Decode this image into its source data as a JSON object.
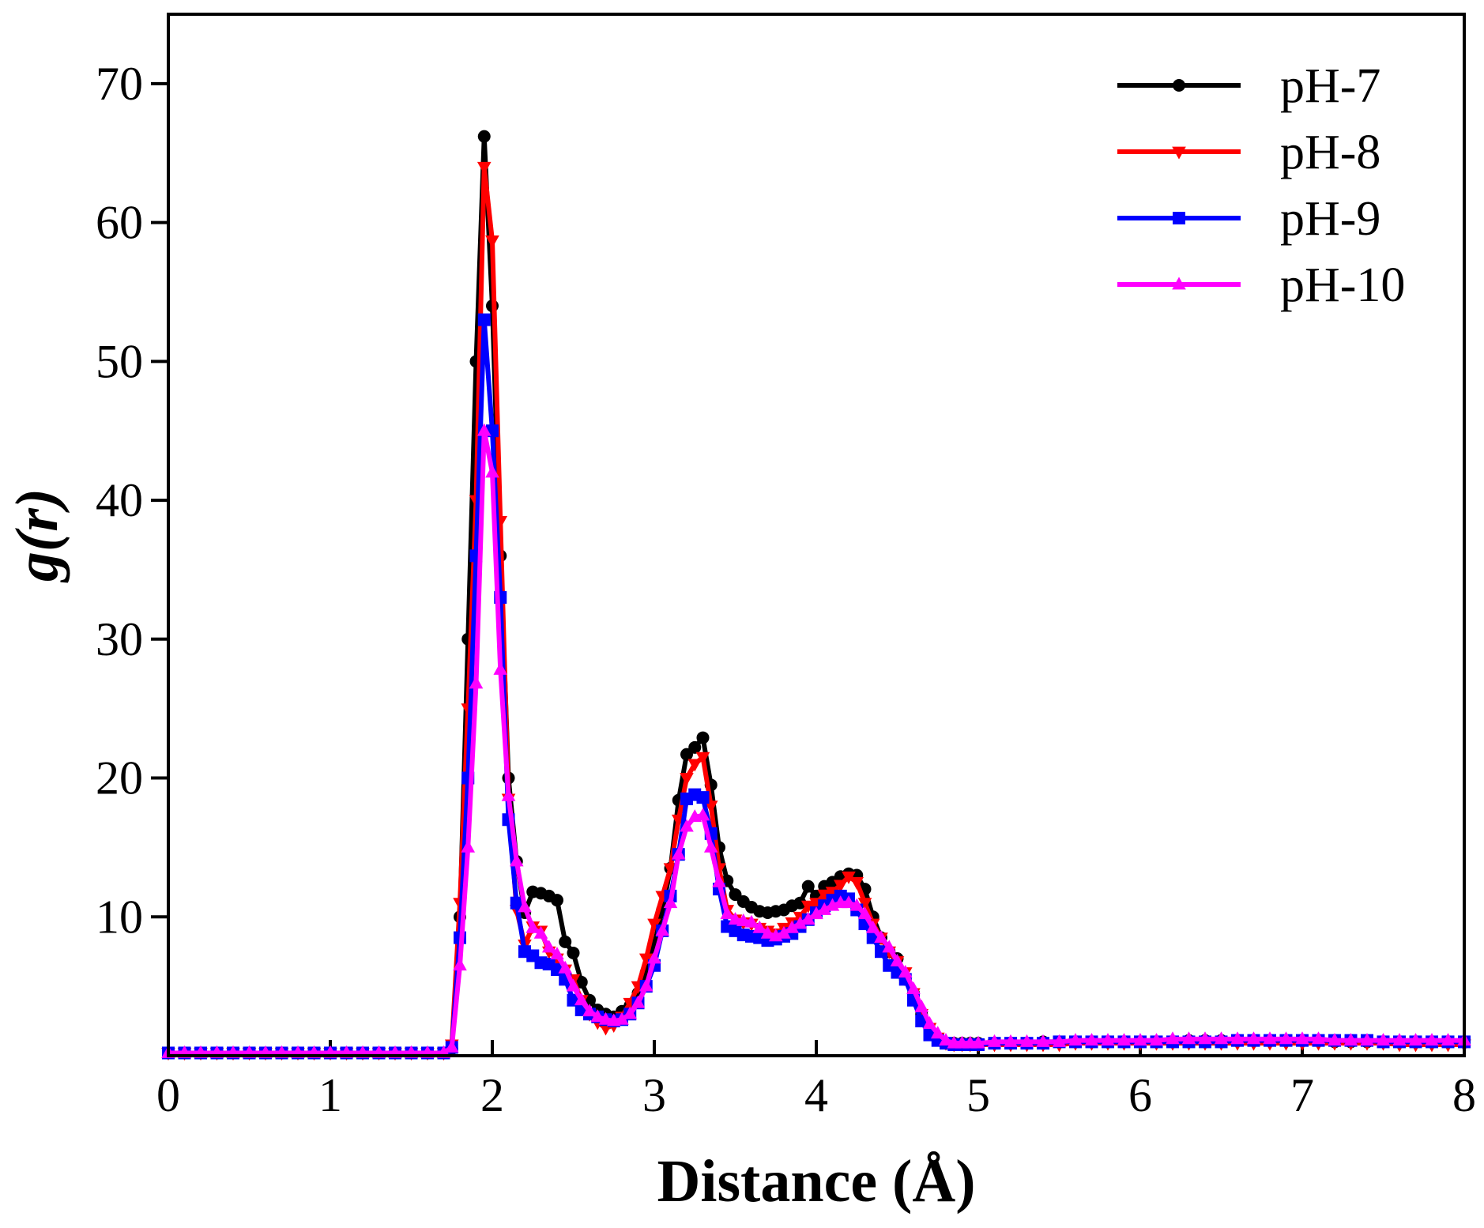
{
  "chart_data": {
    "type": "line",
    "xlabel": "Distance (Å)",
    "ylabel": "g(r)",
    "x": [
      0,
      0.1,
      0.2,
      0.3,
      0.4,
      0.5,
      0.6,
      0.7,
      0.8,
      0.9,
      1,
      1.1,
      1.2,
      1.3,
      1.4,
      1.5,
      1.6,
      1.7,
      1.75,
      1.8,
      1.85,
      1.9,
      1.95,
      2,
      2.05,
      2.1,
      2.15,
      2.2,
      2.25,
      2.3,
      2.35,
      2.4,
      2.45,
      2.5,
      2.55,
      2.6,
      2.65,
      2.7,
      2.75,
      2.8,
      2.85,
      2.9,
      2.95,
      3,
      3.05,
      3.1,
      3.15,
      3.2,
      3.25,
      3.3,
      3.35,
      3.4,
      3.45,
      3.5,
      3.55,
      3.6,
      3.65,
      3.7,
      3.75,
      3.8,
      3.85,
      3.9,
      3.95,
      4,
      4.05,
      4.1,
      4.15,
      4.2,
      4.25,
      4.3,
      4.35,
      4.4,
      4.45,
      4.5,
      4.55,
      4.6,
      4.65,
      4.7,
      4.75,
      4.8,
      4.85,
      4.9,
      4.95,
      5,
      5.1,
      5.2,
      5.3,
      5.4,
      5.5,
      5.6,
      5.7,
      5.8,
      5.9,
      6,
      6.1,
      6.2,
      6.3,
      6.4,
      6.5,
      6.6,
      6.7,
      6.8,
      6.9,
      7,
      7.1,
      7.2,
      7.3,
      7.4,
      7.5,
      7.6,
      7.7,
      7.8,
      7.9,
      8
    ],
    "series": [
      {
        "name": "pH-7",
        "color": "#000000",
        "marker": "circle",
        "values": [
          0.2,
          0.2,
          0.2,
          0.2,
          0.2,
          0.2,
          0.2,
          0.2,
          0.2,
          0.2,
          0.2,
          0.2,
          0.2,
          0.2,
          0.2,
          0.2,
          0.2,
          0.2,
          0.5,
          10,
          30,
          50,
          66.2,
          54,
          36,
          20,
          14,
          10.3,
          11.8,
          11.7,
          11.5,
          11.2,
          8.2,
          7.4,
          5.3,
          4,
          3.3,
          3,
          2.8,
          3.2,
          3.6,
          4.5,
          6,
          8,
          10.5,
          13.5,
          18.4,
          21.7,
          22.2,
          22.9,
          19.5,
          15,
          12.6,
          11.6,
          11.1,
          10.7,
          10.4,
          10.3,
          10.4,
          10.5,
          10.8,
          11,
          12.2,
          11.5,
          12.2,
          12.5,
          12.9,
          13.1,
          13,
          12,
          10,
          8.5,
          7.5,
          7,
          5.5,
          4.5,
          3,
          1.8,
          1.2,
          0.9,
          0.9,
          0.9,
          0.9,
          0.9,
          0.9,
          0.9,
          0.9,
          1,
          1,
          1,
          1,
          1,
          1,
          1,
          1,
          1,
          1.1,
          1.1,
          1.1,
          1.1,
          1.1,
          1.1,
          1.1,
          1.1,
          1.1,
          1,
          1,
          1,
          1,
          1,
          1,
          1,
          1,
          1
        ]
      },
      {
        "name": "pH-8",
        "color": "#ff0000",
        "marker": "triangle-down",
        "values": [
          0.2,
          0.2,
          0.2,
          0.2,
          0.2,
          0.2,
          0.2,
          0.2,
          0.2,
          0.2,
          0.2,
          0.2,
          0.2,
          0.2,
          0.2,
          0.2,
          0.2,
          0.2,
          0.8,
          11,
          25,
          40,
          64,
          58.7,
          38.5,
          18.5,
          10.5,
          8,
          9.3,
          9,
          7.5,
          7,
          6.2,
          5.5,
          4,
          3,
          2.4,
          2,
          2.2,
          2.8,
          3.8,
          5,
          7,
          9.5,
          11.5,
          13.5,
          17,
          20,
          21,
          21.5,
          18,
          13.5,
          10.5,
          9.8,
          9.6,
          9.5,
          9.2,
          9,
          8.8,
          9.2,
          9.6,
          10,
          10.8,
          11,
          11.6,
          11.8,
          12.3,
          12.9,
          12.5,
          11,
          9.5,
          8.5,
          7.5,
          6.8,
          6,
          4.5,
          3,
          2,
          1.3,
          0.9,
          0.8,
          0.8,
          0.8,
          0.8,
          0.8,
          0.8,
          0.8,
          0.8,
          0.8,
          0.9,
          0.9,
          0.9,
          0.9,
          0.9,
          0.9,
          0.9,
          0.9,
          0.9,
          0.9,
          0.9,
          0.9,
          0.9,
          0.9,
          0.9,
          0.9,
          0.9,
          0.9,
          0.9,
          0.9,
          0.8,
          0.8,
          0.8,
          0.8,
          0.8
        ]
      },
      {
        "name": "pH-9",
        "color": "#0000ff",
        "marker": "square",
        "values": [
          0.2,
          0.2,
          0.2,
          0.2,
          0.2,
          0.2,
          0.2,
          0.2,
          0.2,
          0.2,
          0.2,
          0.2,
          0.2,
          0.2,
          0.2,
          0.2,
          0.2,
          0.2,
          0.6,
          8.5,
          20,
          36,
          53,
          45,
          33,
          17,
          11,
          7.5,
          7.2,
          6.7,
          6.6,
          6.2,
          5.5,
          4,
          3.3,
          3,
          2.8,
          2.6,
          2.5,
          2.6,
          3,
          3.8,
          5,
          6.5,
          9,
          11.5,
          14.5,
          18.5,
          18.8,
          18.6,
          16,
          12,
          9.3,
          9,
          8.7,
          8.6,
          8.5,
          8.3,
          8.4,
          8.6,
          8.8,
          9.3,
          9.8,
          10.3,
          10.8,
          11.2,
          11.5,
          11.3,
          10.5,
          9.5,
          8.5,
          7.5,
          6.5,
          6,
          5.5,
          4,
          2.5,
          1.5,
          1.1,
          0.9,
          0.8,
          0.8,
          0.8,
          0.8,
          0.9,
          0.9,
          0.9,
          0.9,
          1,
          1,
          1,
          1,
          1,
          1,
          1,
          1,
          1,
          1,
          1,
          1.1,
          1.1,
          1.1,
          1.1,
          1.1,
          1.1,
          1.1,
          1.1,
          1.1,
          1,
          1,
          1,
          1,
          1,
          1
        ]
      },
      {
        "name": "pH-10",
        "color": "#ff00ff",
        "marker": "triangle-up",
        "values": [
          0.2,
          0.2,
          0.2,
          0.2,
          0.2,
          0.2,
          0.2,
          0.2,
          0.2,
          0.2,
          0.2,
          0.2,
          0.2,
          0.2,
          0.2,
          0.2,
          0.2,
          0.2,
          0.6,
          6.5,
          15,
          26.8,
          45,
          42,
          27.8,
          18.7,
          14,
          10.7,
          9.2,
          8.8,
          7.8,
          7.3,
          6.3,
          5,
          4,
          3.2,
          2.8,
          2.6,
          2.5,
          2.6,
          3,
          3.8,
          5,
          7,
          9,
          11,
          14.5,
          16.5,
          17.2,
          17.3,
          15,
          12.5,
          10.2,
          9.8,
          9.7,
          9.6,
          9.2,
          8.8,
          8.6,
          8.8,
          9.2,
          9.5,
          9.8,
          10.2,
          10.5,
          10.8,
          11,
          11,
          10.8,
          10.2,
          9.2,
          8.5,
          7.8,
          6.8,
          6,
          4.8,
          3.5,
          2.3,
          1.6,
          1.1,
          0.9,
          0.9,
          0.9,
          0.9,
          1,
          1,
          1,
          1,
          1,
          1.1,
          1.1,
          1.1,
          1.1,
          1.1,
          1.1,
          1.2,
          1.2,
          1.2,
          1.2,
          1.2,
          1.2,
          1.2,
          1.2,
          1.2,
          1.2,
          1.1,
          1.1,
          1.1,
          1.1,
          1.1,
          1.1,
          1.1,
          1.1,
          1.1
        ]
      }
    ],
    "xlim": [
      0,
      8
    ],
    "xticks": [
      0,
      1,
      2,
      3,
      4,
      5,
      6,
      7,
      8
    ],
    "ylim": [
      0,
      75
    ],
    "yticks": [
      10,
      20,
      30,
      40,
      50,
      60,
      70
    ],
    "grid": false,
    "legend": "upper right"
  }
}
